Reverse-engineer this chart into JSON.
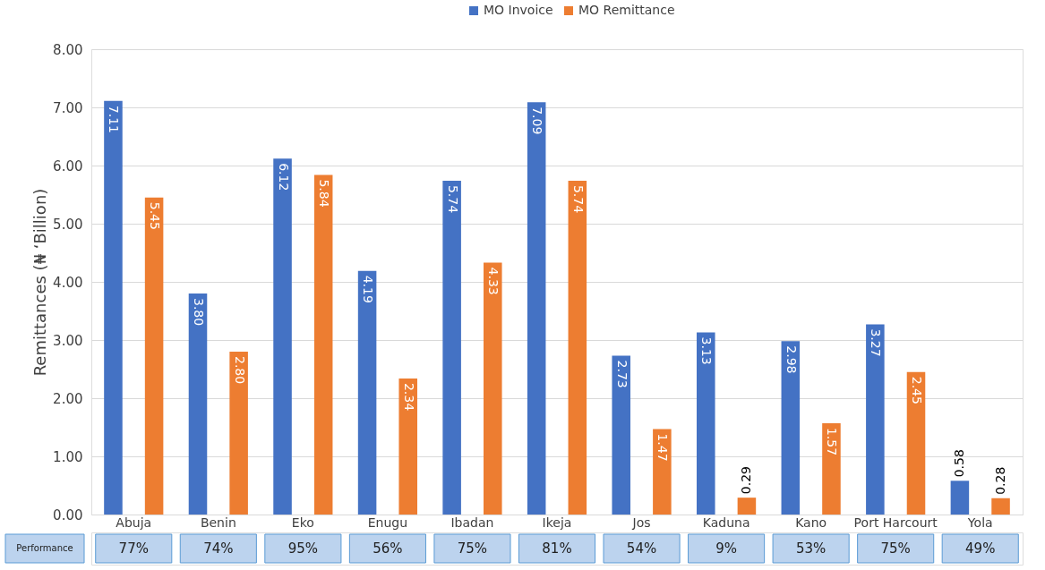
{
  "chart_data": {
    "type": "bar",
    "categories": [
      "Abuja",
      "Benin",
      "Eko",
      "Enugu",
      "Ibadan",
      "Ikeja",
      "Jos",
      "Kaduna",
      "Kano",
      "Port Harcourt",
      "Yola"
    ],
    "series": [
      {
        "name": "MO Invoice",
        "color": "#4472c4",
        "values": [
          7.11,
          3.8,
          6.12,
          4.19,
          5.74,
          7.09,
          2.73,
          3.13,
          2.98,
          3.27,
          0.58
        ],
        "value_labels": [
          "7.11",
          "3.80",
          "6.12",
          "4.19",
          "5.74",
          "7.09",
          "2.73",
          "3.13",
          "2.98",
          "3.27",
          "0.58"
        ]
      },
      {
        "name": "MO Remittance",
        "color": "#ed7d31",
        "values": [
          5.45,
          2.8,
          5.84,
          2.34,
          4.33,
          5.74,
          1.47,
          0.29,
          1.57,
          2.45,
          0.28
        ],
        "value_labels": [
          "5.45",
          "2.80",
          "5.84",
          "2.34",
          "4.33",
          "5.74",
          "1.47",
          "0.29",
          "1.57",
          "2.45",
          "0.28"
        ]
      }
    ],
    "ylabel": "Remittances (₦ ‘Billion)",
    "ylim": [
      0,
      8
    ],
    "yticks": [
      {
        "value": 0,
        "label": "0.00"
      },
      {
        "value": 1,
        "label": "1.00"
      },
      {
        "value": 2,
        "label": "2.00"
      },
      {
        "value": 3,
        "label": "3.00"
      },
      {
        "value": 4,
        "label": "4.00"
      },
      {
        "value": 5,
        "label": "5.00"
      },
      {
        "value": 6,
        "label": "6.00"
      },
      {
        "value": 7,
        "label": "7.00"
      },
      {
        "value": 8,
        "label": "8.00"
      }
    ],
    "grid": "y",
    "legend": "top",
    "annotations": [
      "Performance",
      "77%",
      "74%",
      "95%",
      "56%",
      "75%",
      "81%",
      "54%",
      "9%",
      "53%",
      "75%",
      "49%"
    ]
  }
}
